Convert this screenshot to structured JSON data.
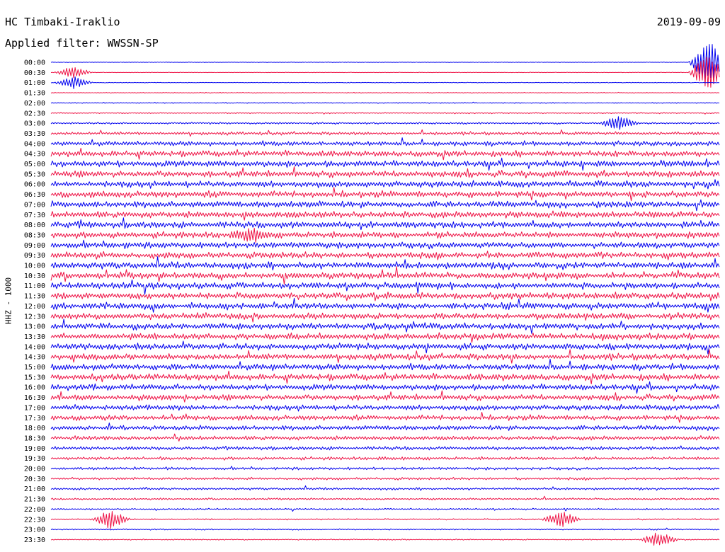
{
  "header": {
    "station": "HC Timbaki-Iraklio",
    "filter": "Applied filter: WWSSN-SP",
    "date": "2019-09-09"
  },
  "colors": {
    "trace_a": "#0000ee",
    "trace_b": "#ee1144",
    "text": "#000000",
    "background": "#ffffff"
  },
  "chart_data": {
    "type": "line",
    "title": "HC Timbaki-Iraklio",
    "subtitle": "Applied filter: WWSSN-SP",
    "ylabel": "HHZ - 1000",
    "xlabel": "",
    "row_labels": [
      "00:00",
      "00:30",
      "01:00",
      "01:30",
      "02:00",
      "02:30",
      "03:00",
      "03:30",
      "04:00",
      "04:30",
      "05:00",
      "05:30",
      "06:00",
      "06:30",
      "07:00",
      "07:30",
      "08:00",
      "08:30",
      "09:00",
      "09:30",
      "10:00",
      "10:30",
      "11:00",
      "11:30",
      "12:00",
      "12:30",
      "13:00",
      "13:30",
      "14:00",
      "14:30",
      "15:00",
      "15:30",
      "16:00",
      "16:30",
      "17:00",
      "17:30",
      "18:00",
      "18:30",
      "19:00",
      "19:30",
      "20:00",
      "20:30",
      "21:00",
      "21:30",
      "22:00",
      "22:30",
      "23:00",
      "23:30"
    ],
    "row_minutes": 30,
    "series_colors": [
      "#0000ee",
      "#ee1144"
    ],
    "noise_level_relative": [
      0.08,
      0.08,
      0.1,
      0.12,
      0.15,
      0.18,
      0.3,
      0.5,
      0.75,
      0.9,
      1.0,
      1.0,
      1.0,
      1.0,
      1.0,
      1.0,
      1.0,
      1.0,
      1.0,
      1.0,
      1.0,
      1.0,
      1.0,
      1.0,
      1.0,
      1.0,
      1.0,
      1.0,
      1.0,
      1.0,
      1.0,
      1.0,
      0.95,
      0.9,
      0.85,
      0.8,
      0.75,
      0.65,
      0.55,
      0.5,
      0.45,
      0.4,
      0.35,
      0.3,
      0.25,
      0.22,
      0.2,
      0.18
    ],
    "events": [
      {
        "row": 0,
        "minute": 29.5,
        "amplitude": 6.0
      },
      {
        "row": 1,
        "minute": 29.5,
        "amplitude": 5.0
      },
      {
        "row": 1,
        "minute": 1.0,
        "amplitude": 1.5
      },
      {
        "row": 2,
        "minute": 1.0,
        "amplitude": 1.6
      },
      {
        "row": 6,
        "minute": 25.5,
        "amplitude": 1.8
      },
      {
        "row": 17,
        "minute": 9.0,
        "amplitude": 1.3
      },
      {
        "row": 45,
        "minute": 2.7,
        "amplitude": 2.5
      },
      {
        "row": 45,
        "minute": 22.9,
        "amplitude": 2.0
      },
      {
        "row": 47,
        "minute": 27.3,
        "amplitude": 2.0
      }
    ],
    "grid": false,
    "legend": "none"
  }
}
